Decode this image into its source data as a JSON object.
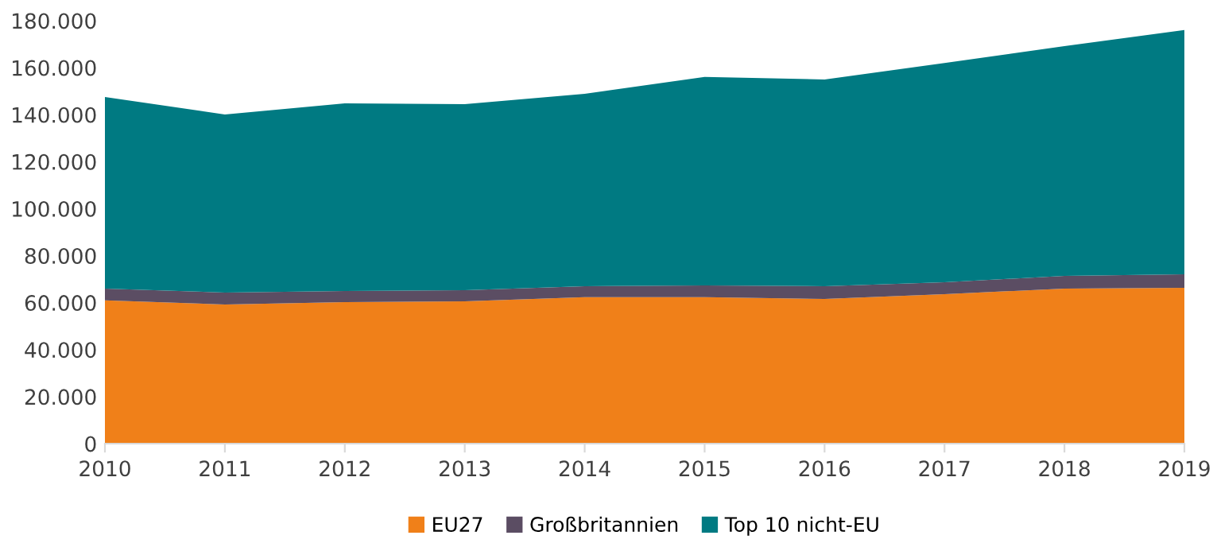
{
  "chart_data": {
    "type": "area",
    "stacked": true,
    "categories": [
      "2010",
      "2011",
      "2012",
      "2013",
      "2014",
      "2015",
      "2016",
      "2017",
      "2018",
      "2019"
    ],
    "series": [
      {
        "name": "EU27",
        "color": "#f08019",
        "values": [
          61000,
          59200,
          60200,
          60600,
          62300,
          62300,
          61600,
          63600,
          66000,
          66300
        ]
      },
      {
        "name": "Großbritannien",
        "color": "#5b4d63",
        "values": [
          5000,
          5100,
          4800,
          4700,
          4700,
          5000,
          5400,
          5100,
          5400,
          5800
        ]
      },
      {
        "name": "Top 10 nicht-EU",
        "color": "#007a82",
        "values": [
          81500,
          75800,
          79800,
          79200,
          81900,
          88800,
          88000,
          93300,
          97800,
          103900
        ]
      }
    ],
    "ylim": [
      0,
      180000
    ],
    "yticks": [
      {
        "value": 0,
        "label": "0"
      },
      {
        "value": 20000,
        "label": "20.000"
      },
      {
        "value": 40000,
        "label": "40.000"
      },
      {
        "value": 60000,
        "label": "60.000"
      },
      {
        "value": 80000,
        "label": "80.000"
      },
      {
        "value": 100000,
        "label": "100.000"
      },
      {
        "value": 120000,
        "label": "120.000"
      },
      {
        "value": 140000,
        "label": "140.000"
      },
      {
        "value": 160000,
        "label": "160.000"
      },
      {
        "value": 180000,
        "label": "180.000"
      }
    ],
    "grid": false,
    "legend": "bottom"
  }
}
